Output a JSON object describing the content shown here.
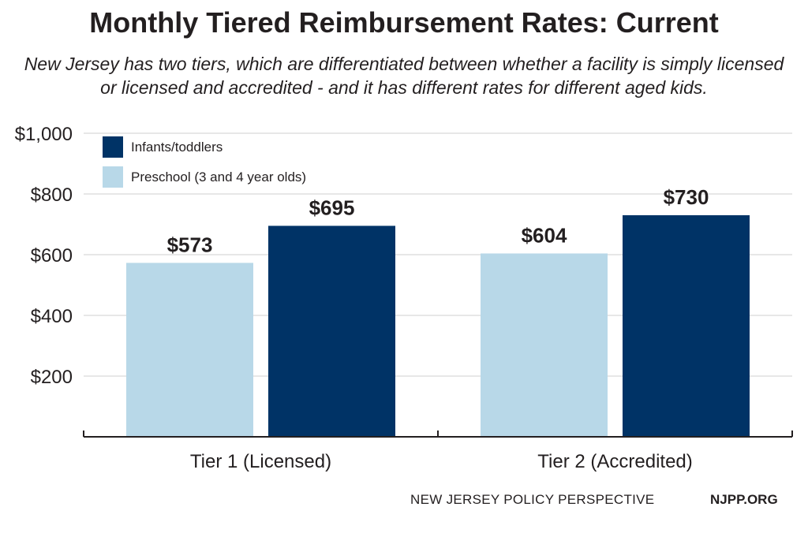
{
  "chart_data": {
    "type": "bar",
    "title": "Monthly Tiered Reimbursement Rates: Current",
    "subtitle": "New Jersey has two tiers, which are differentiated between whether a facility is simply licensed or licensed and accredited - and it has different rates for different aged kids.",
    "categories": [
      "Tier 1 (Licensed)",
      "Tier 2 (Accredited)"
    ],
    "series": [
      {
        "name": "Preschool (3 and 4 year olds)",
        "values": [
          573,
          604
        ],
        "labels": [
          "$573",
          "$604"
        ],
        "color": "#b8d8e8"
      },
      {
        "name": "Infants/toddlers",
        "values": [
          695,
          730
        ],
        "labels": [
          "$695",
          "$730"
        ],
        "color": "#003366"
      }
    ],
    "legend_order": [
      1,
      0
    ],
    "yticks": [
      200,
      400,
      600,
      800,
      1000
    ],
    "ytick_labels": [
      "$200",
      "$400",
      "$600",
      "$800",
      "$1,000"
    ],
    "ylim": [
      0,
      1000
    ],
    "grid": true,
    "legend_position": "top-left"
  },
  "footer": {
    "org": "NEW JERSEY POLICY PERSPECTIVE",
    "site": "NJPP.ORG"
  }
}
